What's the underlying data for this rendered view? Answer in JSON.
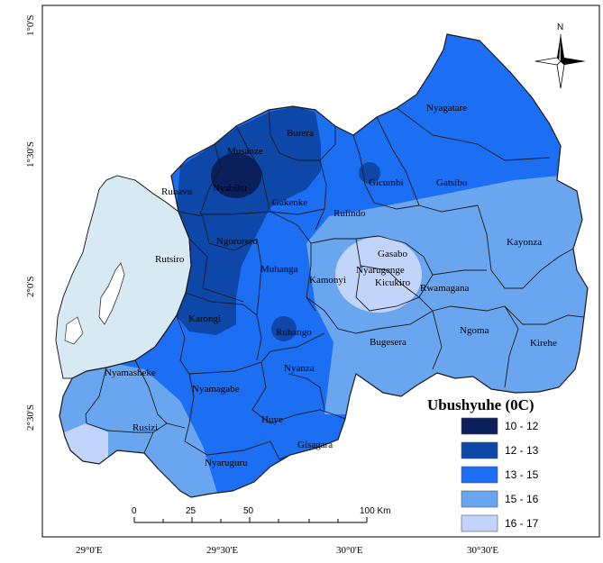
{
  "map": {
    "legend": {
      "title": "Ubushyuhe (0C)",
      "classes": [
        {
          "label": "10 - 12",
          "color": "#0a1f5c"
        },
        {
          "label": "12 - 13",
          "color": "#0d47a8"
        },
        {
          "label": "13 - 15",
          "color": "#1c6ef2"
        },
        {
          "label": "15 - 16",
          "color": "#6aa6f0"
        },
        {
          "label": "16 - 17",
          "color": "#c3d4fb"
        }
      ]
    },
    "lake_color": "#d7eaf4",
    "north_label": "N",
    "scale_bar": {
      "labels": [
        "0",
        "25",
        "50",
        "100 Km"
      ]
    },
    "lat_labels": [
      "1°0'S",
      "1°30'S",
      "2°0'S",
      "2°30'S"
    ],
    "lon_labels": [
      "29°0'E",
      "29°30'E",
      "30°0'E",
      "30°30'E"
    ],
    "districts": {
      "nyagatare": "Nyagatare",
      "burera": "Burera",
      "musanze": "Musanze",
      "nyabihu": "Nyabihu",
      "gicumbi": "Gicumbi",
      "gatsibo": "Gatsibo",
      "rubavu": "Rubavu",
      "gakenke": "Gakenke",
      "rulindo": "Rulindo",
      "kayonza": "Kayonza",
      "gasabo": "Gasabo",
      "rutsiro": "Rutsiro",
      "ngororero": "Ngororero",
      "muhanga": "Muhanga",
      "nyarugenge": "Nyarugenge",
      "kamonyi": "Kamonyi",
      "kicukiro": "Kicukiro",
      "rwamagana": "Rwamagana",
      "karongi": "Karongi",
      "ruhango": "Ruhango",
      "ngoma": "Ngoma",
      "bugesera": "Bugesera",
      "kirehe": "Kirehe",
      "nyamasheke": "Nyamasheke",
      "nyanza": "Nyanza",
      "nyamagabe": "Nyamagabe",
      "huye": "Huye",
      "rusizi": "Rusizi",
      "gisagara": "Gisagara",
      "nyaruguru": "Nyaruguru"
    }
  }
}
